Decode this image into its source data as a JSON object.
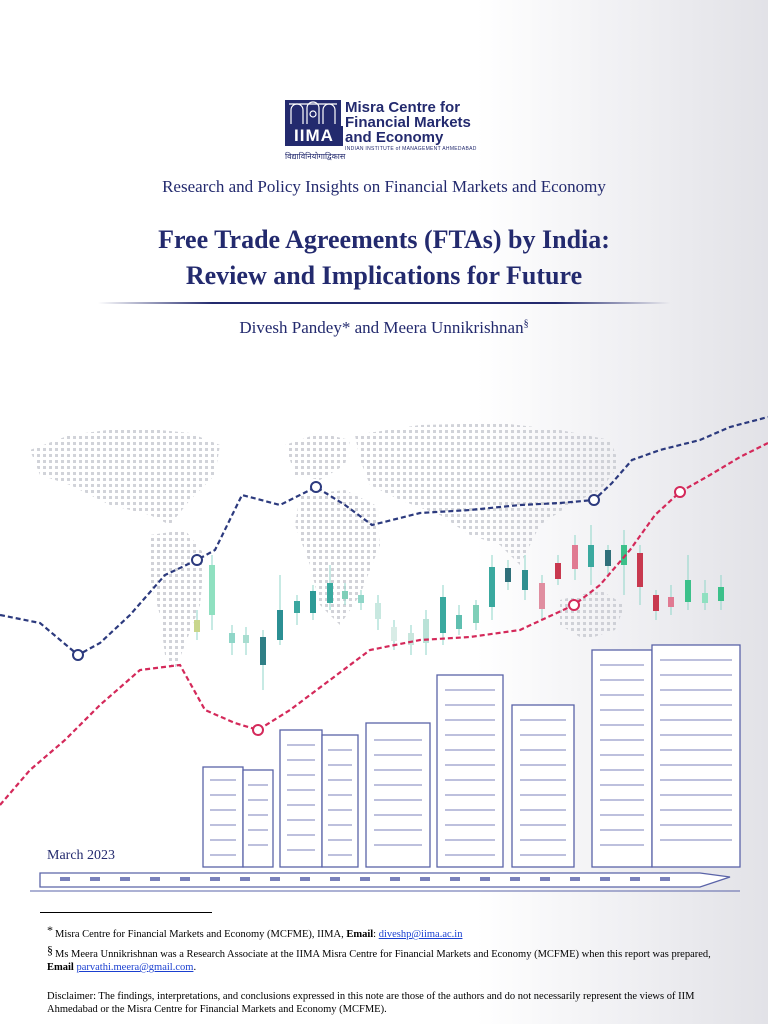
{
  "logo": {
    "abbr": "IIMA",
    "name_line1": "Misra Centre for",
    "name_line2": "Financial Markets",
    "name_line3": "and Economy",
    "institute": "INDIAN INSTITUTE of MANAGEMENT AHMEDABAD",
    "hindi_motto": "विद्याविनियोगाद्विकास"
  },
  "series_title": "Research and Policy Insights on Financial Markets and Economy",
  "title_line1": "Free Trade Agreements (FTAs) by India:",
  "title_line2": "Review and Implications for Future",
  "authors": {
    "text": "Divesh Pandey* and Meera Unnikrishnan",
    "mark": "§"
  },
  "date": "March 2023",
  "footnotes": {
    "fn1": {
      "mark": "*",
      "text": "Misra Centre for Financial Markets and Economy (MCFME), IIMA, ",
      "email_label": "Email",
      "email": "diveshp@iima.ac.in"
    },
    "fn2": {
      "mark": "§",
      "text": "Ms Meera Unnikrishnan was a Research Associate at the IIMA Misra Centre for Financial Markets and Economy (MCFME) when this report was prepared, ",
      "email_label": "Email",
      "email": "parvathi.meera@gmail.com",
      "end": "."
    }
  },
  "disclaimer": "Disclaimer: The findings, interpretations, and conclusions expressed in this note are those of the authors and do not necessarily represent the views of IIM Ahmedabad or the Misra Centre for Financial Markets and Economy (MCFME).",
  "colors": {
    "brand_navy": "#232a6e",
    "blue_line": "#2c3a7e",
    "red_line": "#d4295a",
    "candle_teal": "#3aa99f",
    "candle_red": "#c8394f",
    "candle_green": "#3cc08a",
    "building_stroke": "#5a63a8"
  }
}
